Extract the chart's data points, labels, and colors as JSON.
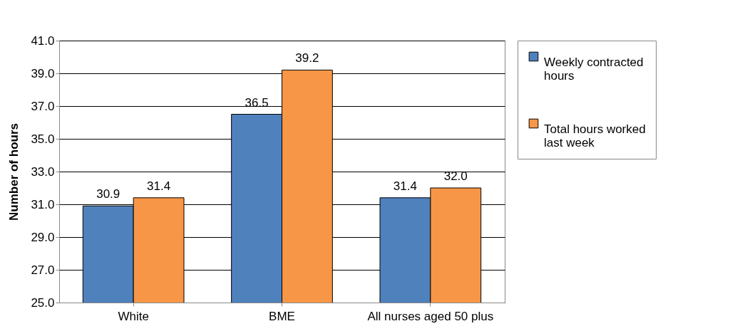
{
  "chart_data": {
    "type": "bar",
    "ylabel": "Number of hours",
    "categories": [
      "White",
      "BME",
      "All nurses aged 50 plus"
    ],
    "series": [
      {
        "name": "Weekly contracted hours",
        "color": "#4f81bd",
        "values": [
          30.9,
          36.5,
          31.4
        ],
        "value_labels": [
          "30.9",
          "36.5",
          "31.4"
        ]
      },
      {
        "name": "Total hours worked last week",
        "color": "#f79646",
        "values": [
          31.4,
          39.2,
          32.0
        ],
        "value_labels": [
          "31.4",
          "39.2",
          "32.0"
        ]
      }
    ],
    "ylim": [
      25,
      41
    ],
    "yticks": [
      {
        "value": 25,
        "label": "25.0"
      },
      {
        "value": 27,
        "label": "27.0"
      },
      {
        "value": 29,
        "label": "29.0"
      },
      {
        "value": 31,
        "label": "31.0"
      },
      {
        "value": 33,
        "label": "33.0"
      },
      {
        "value": 35,
        "label": "35.0"
      },
      {
        "value": 37,
        "label": "37.0"
      },
      {
        "value": 39,
        "label": "39.0"
      },
      {
        "value": 41,
        "label": "41.0"
      }
    ],
    "grid": "y",
    "legend": "right"
  }
}
